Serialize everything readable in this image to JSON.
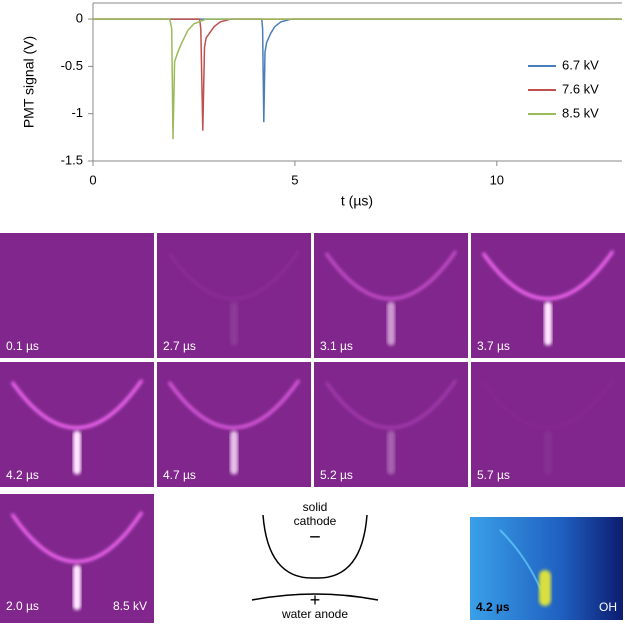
{
  "chart_data": {
    "type": "line",
    "y_label": "PMT signal (V)",
    "x_label": "t (µs)",
    "xlim": [
      0,
      13.1
    ],
    "xticks": [
      0,
      5,
      10
    ],
    "ylim": [
      -1.5,
      0.17
    ],
    "yticks": [
      0,
      -0.5,
      -1,
      -1.5
    ],
    "legend": "right",
    "series": [
      {
        "name": "6.7 kV",
        "color": "#4a7ebb",
        "x": [
          0,
          4.18,
          4.2,
          4.23,
          4.26,
          4.3,
          4.4,
          4.5,
          4.65,
          4.9,
          13.1
        ],
        "values": [
          0,
          0,
          -0.1,
          -1.09,
          -0.35,
          -0.25,
          -0.15,
          -0.08,
          -0.03,
          0,
          0
        ]
      },
      {
        "name": "7.6 kV",
        "color": "#c0504d",
        "x": [
          0,
          2.64,
          2.67,
          2.72,
          2.76,
          2.8,
          2.9,
          3.0,
          3.15,
          3.4,
          13.1
        ],
        "values": [
          0,
          0,
          -0.1,
          -1.18,
          -0.3,
          -0.2,
          -0.14,
          -0.08,
          -0.03,
          0,
          0
        ]
      },
      {
        "name": "8.5 kV",
        "color": "#9bbb59",
        "x": [
          0,
          1.9,
          1.95,
          1.98,
          2.02,
          2.1,
          2.2,
          2.35,
          2.5,
          2.8,
          13.1
        ],
        "values": [
          0,
          0,
          -0.1,
          -1.27,
          -0.45,
          -0.35,
          -0.25,
          -0.12,
          -0.05,
          0,
          0
        ]
      }
    ]
  },
  "images": {
    "panels": [
      "0.1 µs",
      "2.7 µs",
      "3.1 µs",
      "3.7 µs",
      "4.2 µs",
      "4.7 µs",
      "5.2 µs",
      "5.7 µs"
    ],
    "large": {
      "time": "2.0 µs",
      "voltage": "8.5 kV"
    },
    "oh": {
      "time": "4.2 µs",
      "label": "OH"
    }
  },
  "diagram": {
    "cathode": [
      "solid",
      "cathode"
    ],
    "cathode_sign": "−",
    "anode_sign": "+",
    "anode": "water anode"
  }
}
